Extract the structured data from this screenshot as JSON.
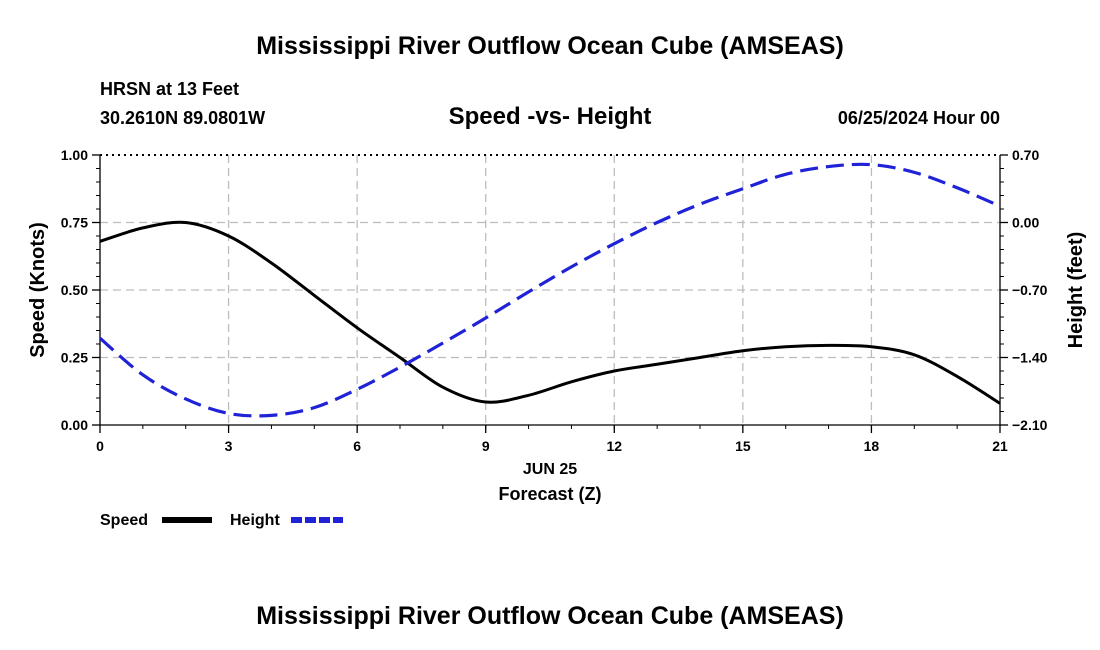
{
  "header": {
    "title": "Mississippi River Outflow Ocean Cube (AMSEAS)",
    "station": "HRSN at 13 Feet",
    "coords": "30.2610N  89.0801W",
    "subtitle": "Speed -vs- Height",
    "datetime": "06/25/2024 Hour 00"
  },
  "footer": {
    "title_repeat": "Mississippi River Outflow Ocean Cube (AMSEAS)"
  },
  "legend": {
    "speed_label": "Speed",
    "height_label": "Height"
  },
  "chart_data": {
    "type": "line",
    "title": "Speed -vs- Height",
    "xlabel": "Forecast (Z)",
    "x_date_label": "JUN 25",
    "ylabel_left": "Speed (Knots)",
    "ylabel_right": "Height (feet)",
    "xlim": [
      0,
      21
    ],
    "ylim_left": [
      0,
      1
    ],
    "ylim_right": [
      -2.1,
      0.7
    ],
    "x_ticks": [
      0,
      3,
      6,
      9,
      12,
      15,
      18,
      21
    ],
    "x_tick_labels": [
      "0",
      "3",
      "6",
      "9",
      "12",
      "15",
      "18",
      "21"
    ],
    "y_left_ticks": [
      0,
      0.25,
      0.5,
      0.75,
      1.0
    ],
    "y_left_tick_labels": [
      "0.00",
      "0.25",
      "0.50",
      "0.75",
      "1.00"
    ],
    "y_right_ticks": [
      -2.1,
      -1.4,
      -0.7,
      0.0,
      0.7
    ],
    "y_right_tick_labels": [
      "−2.10",
      "−1.40",
      "−0.70",
      "0.00",
      "0.70"
    ],
    "grid": true,
    "series": [
      {
        "name": "Speed",
        "axis": "left",
        "color": "#000000",
        "style": "solid",
        "x": [
          0,
          1,
          2,
          3,
          4,
          5,
          6,
          7,
          8,
          9,
          10,
          11,
          12,
          13,
          14,
          15,
          16,
          17,
          18,
          19,
          20,
          21
        ],
        "values": [
          0.68,
          0.73,
          0.75,
          0.7,
          0.6,
          0.48,
          0.36,
          0.25,
          0.14,
          0.085,
          0.11,
          0.16,
          0.2,
          0.225,
          0.25,
          0.275,
          0.29,
          0.295,
          0.29,
          0.26,
          0.18,
          0.08
        ]
      },
      {
        "name": "Height",
        "axis": "right",
        "color": "#1f22d6",
        "style": "dashed",
        "x": [
          0,
          1,
          2,
          3,
          4,
          5,
          6,
          7,
          8,
          9,
          10,
          11,
          12,
          13,
          14,
          15,
          16,
          17,
          18,
          19,
          20,
          21
        ],
        "values": [
          -1.2,
          -1.58,
          -1.83,
          -1.98,
          -2.0,
          -1.92,
          -1.73,
          -1.5,
          -1.25,
          -0.99,
          -0.72,
          -0.46,
          -0.22,
          0.0,
          0.19,
          0.35,
          0.5,
          0.58,
          0.6,
          0.52,
          0.36,
          0.17
        ]
      }
    ]
  }
}
